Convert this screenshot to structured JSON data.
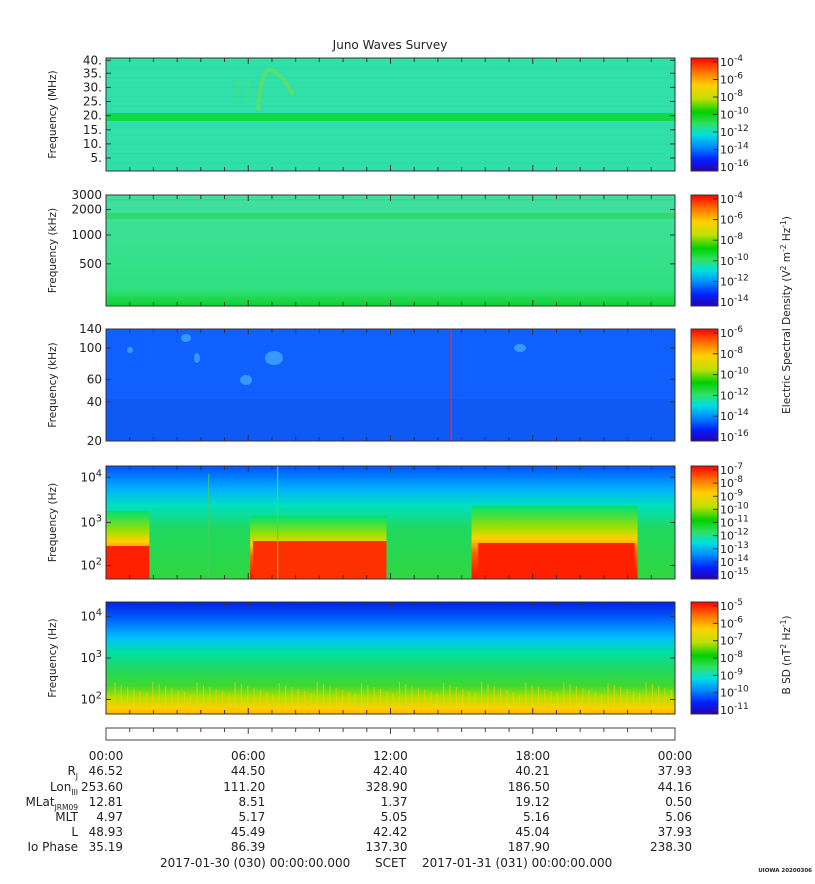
{
  "title": "Juno Waves Survey",
  "footer_version": "UIOWA 20200306",
  "colors": {
    "palette": [
      "#2a00b0",
      "#0020ff",
      "#0090ff",
      "#00e0e0",
      "#30e060",
      "#00d000",
      "#c0e000",
      "#ffd000",
      "#ff7000",
      "#ff0000"
    ]
  },
  "panels": [
    {
      "ylabel": "Frequency (MHz)",
      "ytick_labels": [
        "40.",
        "35.",
        "30.",
        "25.",
        "20.",
        "15.",
        "10.",
        "5."
      ],
      "cbar_labels": [
        "10^-4",
        "10^-6",
        "10^-8",
        "10^-10",
        "10^-12",
        "10^-14",
        "10^-16"
      ]
    },
    {
      "ylabel": "Frequency (kHz)",
      "ytick_labels": [
        "3000",
        "2000",
        "1000",
        "500"
      ],
      "cbar_labels": [
        "10^-4",
        "10^-6",
        "10^-8",
        "10^-10",
        "10^-12",
        "10^-14"
      ]
    },
    {
      "ylabel": "Frequency (kHz)",
      "ytick_labels": [
        "140",
        "100",
        "60",
        "40",
        "20"
      ],
      "cbar_labels": [
        "10^-6",
        "10^-8",
        "10^-10",
        "10^-12",
        "10^-14",
        "10^-16"
      ]
    },
    {
      "ylabel": "Frequency (Hz)",
      "ytick_labels": [
        "10^4",
        "10^3",
        "10^2"
      ],
      "cbar_labels": [
        "10^-7",
        "10^-8",
        "10^-9",
        "10^-10",
        "10^-11",
        "10^-12",
        "10^-13",
        "10^-14",
        "10^-15"
      ]
    },
    {
      "ylabel": "Frequency (Hz)",
      "ytick_labels": [
        "10^4",
        "10^3",
        "10^2"
      ],
      "cbar_labels": [
        "10^-5",
        "10^-6",
        "10^-7",
        "10^-8",
        "10^-9",
        "10^-10",
        "10^-11"
      ]
    }
  ],
  "cbar_label_electric": "Electric Spectral Density (V^2 m^-2 Hz^-1)",
  "cbar_label_magnetic": "B SD (nT^2 Hz^-1)",
  "ephemeris": {
    "times": [
      "00:00",
      "06:00",
      "12:00",
      "18:00",
      "00:00"
    ],
    "rows": [
      {
        "label": "R_J",
        "values": [
          "46.52",
          "44.50",
          "42.40",
          "40.21",
          "37.93"
        ]
      },
      {
        "label": "Lon_III",
        "values": [
          "253.60",
          "111.20",
          "328.90",
          "186.50",
          "44.16"
        ]
      },
      {
        "label": "MLat_JRM09",
        "values": [
          "12.81",
          "8.51",
          "1.37",
          "19.12",
          "0.50"
        ]
      },
      {
        "label": "MLT",
        "values": [
          "4.97",
          "5.17",
          "5.05",
          "5.16",
          "5.06"
        ]
      },
      {
        "label": "L",
        "values": [
          "48.93",
          "45.49",
          "42.42",
          "45.04",
          "37.93"
        ]
      },
      {
        "label": "Io Phase",
        "values": [
          "35.19",
          "86.39",
          "137.30",
          "187.90",
          "238.30"
        ]
      }
    ]
  },
  "scet": {
    "start": "2017-01-30 (030) 00:00:00.000",
    "middle": "SCET",
    "end": "2017-01-31 (031) 00:00:00.000"
  },
  "chart_data": [
    {
      "type": "heatmap",
      "title": "Juno Waves Survey",
      "ylabel": "Frequency (MHz)",
      "x": [
        "2017-01-30 00:00",
        "06:00",
        "12:00",
        "18:00",
        "2017-01-31 00:00"
      ],
      "ylim": [
        3.5,
        41
      ],
      "yticks": [
        5,
        10,
        15,
        20,
        25,
        30,
        35,
        40
      ],
      "colorbar": {
        "min": 1e-17,
        "max": 0.0001,
        "scale": "log"
      },
      "background_level": 1e-12,
      "features": [
        {
          "kind": "constant band",
          "freq": 21.5,
          "level": 1e-11
        }
      ]
    },
    {
      "type": "heatmap",
      "ylabel": "Frequency (kHz)",
      "scale": "log",
      "ylim": [
        150,
        3000
      ],
      "yticks": [
        500,
        1000,
        2000,
        3000
      ],
      "colorbar": {
        "min": 1e-15,
        "max": 0.0001,
        "scale": "log"
      },
      "background_level": 1e-12,
      "features": [
        {
          "kind": "constant band",
          "freq": 1700,
          "level": 1e-11
        }
      ]
    },
    {
      "type": "heatmap",
      "ylabel": "Frequency (kHz)",
      "ylim": [
        20,
        140
      ],
      "yticks": [
        20,
        40,
        60,
        100,
        140
      ],
      "colorbar": {
        "min": 1e-17,
        "max": 1e-06,
        "scale": "log"
      },
      "background_level": 1e-15,
      "features": [
        {
          "kind": "vertical line",
          "time": "14:40",
          "level": 1e-07
        }
      ]
    },
    {
      "type": "heatmap",
      "ylabel": "Frequency (Hz)",
      "scale": "log",
      "ylim": [
        60,
        20000
      ],
      "yticks": [
        100,
        1000,
        10000
      ],
      "colorbar": {
        "min": 1e-15,
        "max": 1e-07,
        "scale": "log"
      },
      "features": [
        {
          "kind": "intense low-frequency emission",
          "start": "00:00",
          "end": "01:50",
          "level": 1e-07
        },
        {
          "kind": "intense low-frequency emission",
          "start": "06:05",
          "end": "11:50",
          "level": 1e-07
        },
        {
          "kind": "intense low-frequency emission",
          "start": "15:25",
          "end": "22:25",
          "level": 1e-07
        }
      ]
    },
    {
      "type": "heatmap",
      "ylabel": "Frequency (Hz)",
      "scale": "log",
      "ylim": [
        60,
        20000
      ],
      "yticks": [
        100,
        1000,
        10000
      ],
      "colorbar": {
        "min": 1e-11,
        "max": 0.0001,
        "scale": "log"
      },
      "background_level": 1e-09
    }
  ]
}
